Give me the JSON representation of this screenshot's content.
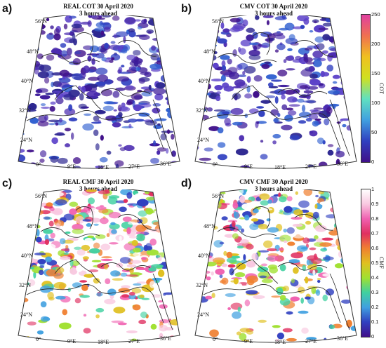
{
  "panels": [
    {
      "letter": "a)",
      "title": "REAL COT 30 April 2020",
      "subtitle": "3 hours ahead"
    },
    {
      "letter": "b)",
      "title": "CMV COT 30 April 2020",
      "subtitle": "3 hours ahead"
    },
    {
      "letter": "c)",
      "title": "REAL CMF 30 April 2020",
      "subtitle": "3 hours ahead"
    },
    {
      "letter": "d)",
      "title": "CMV CMF 30 April 2020",
      "subtitle": "3 hours ahead"
    }
  ],
  "lat_labels": [
    "56°N",
    "48°N",
    "40°N",
    "32°N",
    "24°N"
  ],
  "lon_labels": [
    "0°",
    "9°E",
    "18°E",
    "27°E",
    "36°E"
  ],
  "colorbars": {
    "cot": {
      "label": "COT",
      "ticks": [
        "250",
        "200",
        "150",
        "100",
        "50",
        "0"
      ],
      "colors": [
        "#e040a0",
        "#f07050",
        "#f0c020",
        "#d0e020",
        "#60e0c0",
        "#40a0e0",
        "#3040c0",
        "#40108a"
      ]
    },
    "cmf": {
      "label": "CMF",
      "ticks": [
        "1",
        "0.9",
        "0.8",
        "0.7",
        "0.6",
        "0.5",
        "0.4",
        "0.3",
        "0.2",
        "0.1",
        "0"
      ],
      "colors": [
        "#ffffff",
        "#f8c8e0",
        "#f060b0",
        "#e03060",
        "#f08030",
        "#e0c020",
        "#a0e030",
        "#40d0a0",
        "#40a0e0",
        "#3040c0",
        "#40108a"
      ]
    }
  }
}
